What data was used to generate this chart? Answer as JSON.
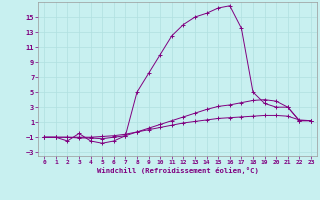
{
  "xlabel": "Windchill (Refroidissement éolien,°C)",
  "background_color": "#c8f0f0",
  "line_color": "#800080",
  "grid_color": "#b0e0e0",
  "xlim": [
    -0.5,
    23.5
  ],
  "ylim": [
    -3.5,
    17
  ],
  "xticks": [
    0,
    1,
    2,
    3,
    4,
    5,
    6,
    7,
    8,
    9,
    10,
    11,
    12,
    13,
    14,
    15,
    16,
    17,
    18,
    19,
    20,
    21,
    22,
    23
  ],
  "yticks": [
    -3,
    -1,
    1,
    3,
    5,
    7,
    9,
    11,
    13,
    15
  ],
  "curve1_x": [
    0,
    1,
    2,
    3,
    4,
    5,
    6,
    7,
    8,
    9,
    10,
    11,
    12,
    13,
    14,
    15,
    16,
    17,
    18,
    19,
    20,
    21,
    22,
    23
  ],
  "curve1_y": [
    -1,
    -1,
    -1.5,
    -0.5,
    -1.5,
    -1.8,
    -1.5,
    -0.8,
    5.0,
    7.5,
    10.0,
    12.5,
    14.0,
    15.0,
    15.5,
    16.2,
    16.5,
    13.5,
    5.0,
    3.5,
    3.0,
    3.0,
    1.2,
    1.2
  ],
  "curve2_x": [
    0,
    1,
    2,
    3,
    4,
    5,
    6,
    7,
    8,
    9,
    10,
    11,
    12,
    13,
    14,
    15,
    16,
    17,
    18,
    19,
    20,
    21,
    22,
    23
  ],
  "curve2_y": [
    -1,
    -1,
    -1,
    -1.1,
    -1.1,
    -1.2,
    -1.0,
    -0.8,
    -0.3,
    0.2,
    0.7,
    1.2,
    1.7,
    2.2,
    2.7,
    3.1,
    3.3,
    3.6,
    3.9,
    4.0,
    3.8,
    3.0,
    1.2,
    1.2
  ],
  "curve3_x": [
    0,
    1,
    2,
    3,
    4,
    5,
    6,
    7,
    8,
    9,
    10,
    11,
    12,
    13,
    14,
    15,
    16,
    17,
    18,
    19,
    20,
    21,
    22,
    23
  ],
  "curve3_y": [
    -1,
    -1,
    -1,
    -1,
    -1,
    -0.9,
    -0.8,
    -0.6,
    -0.3,
    0.0,
    0.3,
    0.6,
    0.9,
    1.1,
    1.3,
    1.5,
    1.6,
    1.7,
    1.8,
    1.9,
    1.9,
    1.8,
    1.3,
    1.2
  ]
}
